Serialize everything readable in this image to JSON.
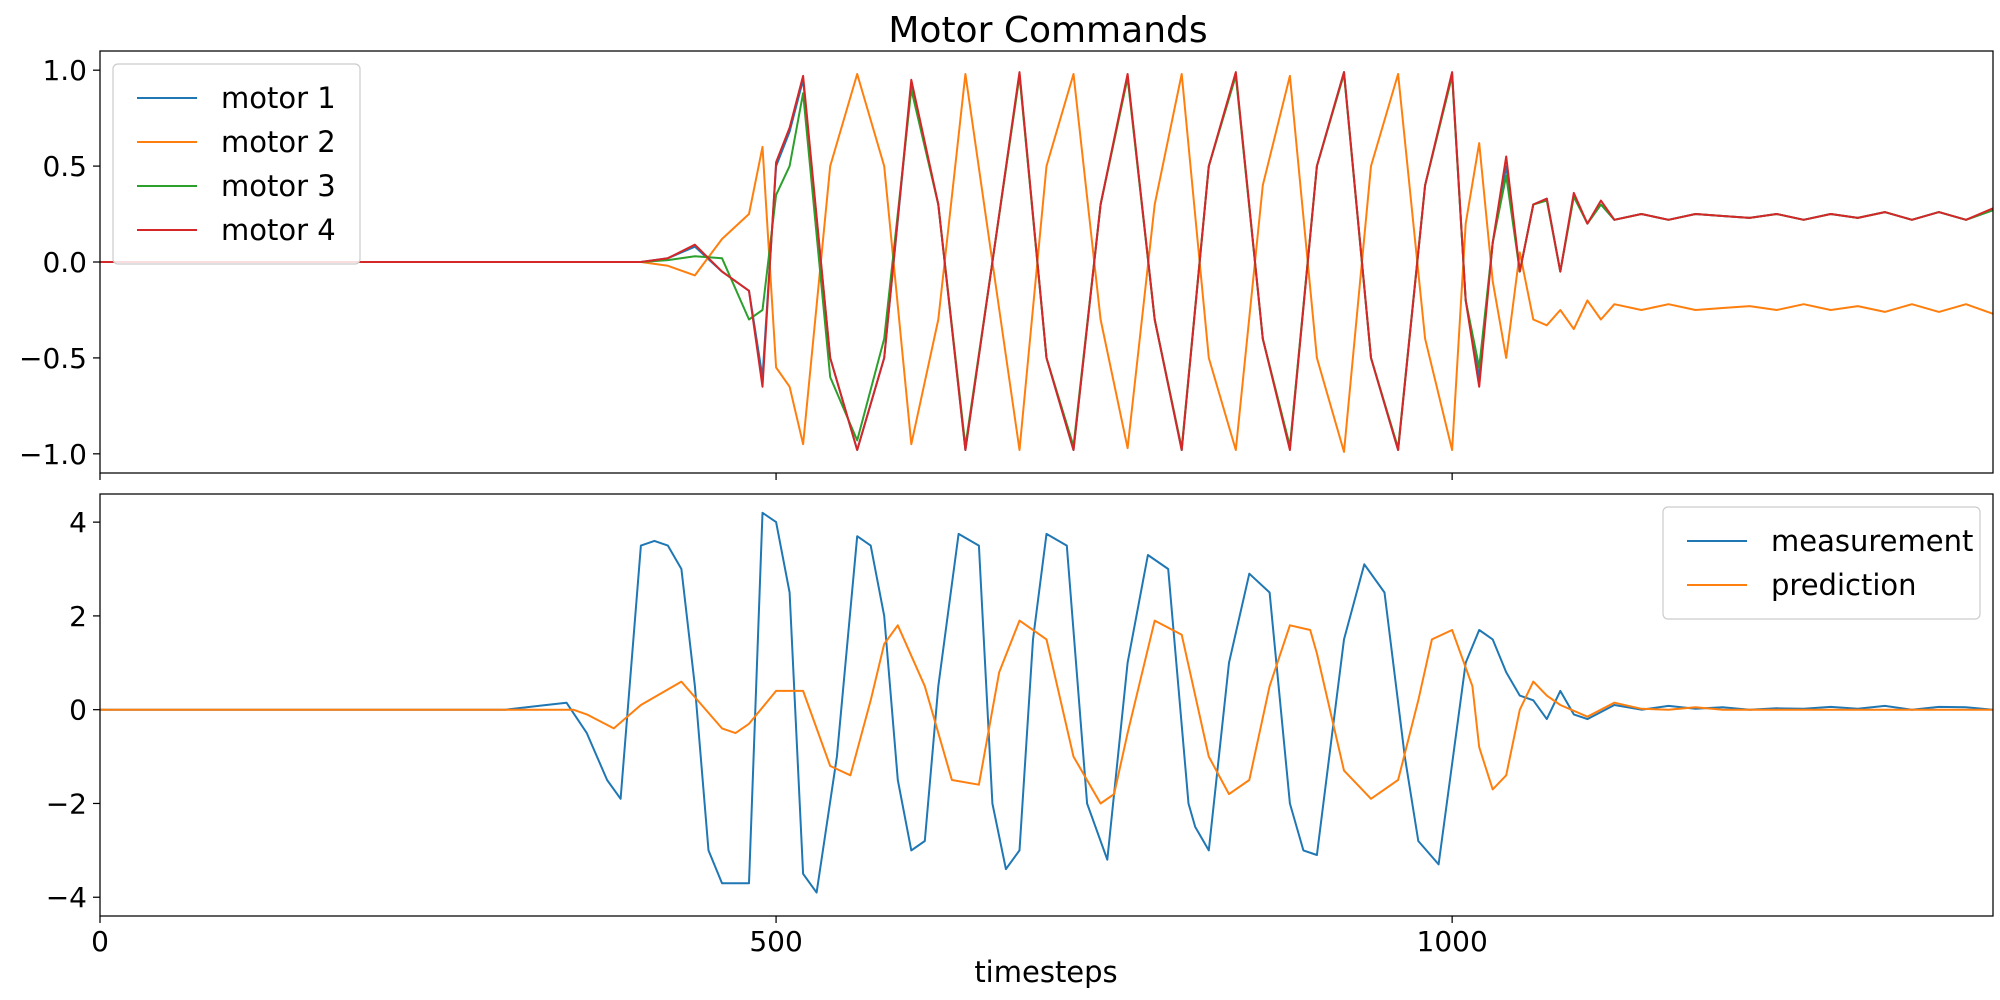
{
  "chart_data": [
    {
      "type": "line",
      "title": "Motor Commands",
      "xlabel": "",
      "ylabel": "",
      "xlim": [
        0,
        1400
      ],
      "ylim": [
        -1.1,
        1.1
      ],
      "grid": false,
      "legend": "upper-left",
      "yticks": [
        {
          "value": 1.0,
          "label": "1.0"
        },
        {
          "value": 0.5,
          "label": "0.5"
        },
        {
          "value": 0.0,
          "label": "0.0"
        },
        {
          "value": -0.5,
          "label": "−0.5"
        },
        {
          "value": -1.0,
          "label": "−1.0"
        }
      ],
      "xticks": [
        {
          "value": 0,
          "label": ""
        },
        {
          "value": 500,
          "label": ""
        },
        {
          "value": 1000,
          "label": ""
        }
      ],
      "series": [
        {
          "name": "motor 1",
          "color": "#1f77b4",
          "x": [
            0,
            400,
            420,
            440,
            460,
            480,
            490,
            500,
            510,
            520,
            540,
            560,
            580,
            600,
            620,
            640,
            660,
            680,
            700,
            720,
            740,
            760,
            780,
            800,
            820,
            840,
            860,
            880,
            900,
            920,
            940,
            960,
            980,
            1000,
            1010,
            1020,
            1030,
            1040,
            1050,
            1060,
            1070,
            1080,
            1090,
            1100,
            1110,
            1120,
            1140,
            1160,
            1180,
            1200,
            1220,
            1240,
            1260,
            1280,
            1300,
            1320,
            1340,
            1360,
            1380,
            1400
          ],
          "values": [
            0.0,
            0.0,
            0.02,
            0.08,
            -0.05,
            -0.15,
            -0.6,
            0.5,
            0.68,
            0.95,
            -0.5,
            -0.98,
            -0.5,
            0.93,
            0.3,
            -0.98,
            0.0,
            0.98,
            -0.5,
            -0.98,
            0.3,
            0.97,
            -0.3,
            -0.98,
            0.5,
            0.98,
            -0.4,
            -0.97,
            0.5,
            0.99,
            -0.5,
            -0.98,
            0.4,
            0.98,
            -0.2,
            -0.6,
            0.1,
            0.5,
            -0.05,
            0.3,
            0.33,
            -0.05,
            0.35,
            0.2,
            0.3,
            0.22,
            0.25,
            0.22,
            0.25,
            0.24,
            0.23,
            0.25,
            0.22,
            0.25,
            0.23,
            0.26,
            0.22,
            0.26,
            0.22,
            0.27
          ]
        },
        {
          "name": "motor 2",
          "color": "#ff7f0e",
          "x": [
            0,
            400,
            420,
            440,
            460,
            480,
            490,
            500,
            510,
            520,
            540,
            560,
            580,
            600,
            620,
            640,
            660,
            680,
            700,
            720,
            740,
            760,
            780,
            800,
            820,
            840,
            860,
            880,
            900,
            920,
            940,
            960,
            980,
            1000,
            1010,
            1020,
            1030,
            1040,
            1050,
            1060,
            1070,
            1080,
            1090,
            1100,
            1110,
            1120,
            1140,
            1160,
            1180,
            1200,
            1220,
            1240,
            1260,
            1280,
            1300,
            1320,
            1340,
            1360,
            1380,
            1400
          ],
          "values": [
            0.0,
            0.0,
            -0.02,
            -0.07,
            0.12,
            0.25,
            0.6,
            -0.55,
            -0.65,
            -0.95,
            0.5,
            0.98,
            0.5,
            -0.95,
            -0.3,
            0.98,
            0.0,
            -0.98,
            0.5,
            0.98,
            -0.3,
            -0.97,
            0.3,
            0.98,
            -0.5,
            -0.98,
            0.4,
            0.97,
            -0.5,
            -0.99,
            0.5,
            0.98,
            -0.4,
            -0.98,
            0.2,
            0.62,
            -0.1,
            -0.5,
            0.05,
            -0.3,
            -0.33,
            -0.25,
            -0.35,
            -0.2,
            -0.3,
            -0.22,
            -0.25,
            -0.22,
            -0.25,
            -0.24,
            -0.23,
            -0.25,
            -0.22,
            -0.25,
            -0.23,
            -0.26,
            -0.22,
            -0.26,
            -0.22,
            -0.27
          ]
        },
        {
          "name": "motor 3",
          "color": "#2ca02c",
          "x": [
            0,
            400,
            420,
            440,
            460,
            480,
            490,
            500,
            510,
            520,
            540,
            560,
            580,
            600,
            620,
            640,
            660,
            680,
            700,
            720,
            740,
            760,
            780,
            800,
            820,
            840,
            860,
            880,
            900,
            920,
            940,
            960,
            980,
            1000,
            1010,
            1020,
            1030,
            1040,
            1050,
            1060,
            1070,
            1080,
            1090,
            1100,
            1110,
            1120,
            1140,
            1160,
            1180,
            1200,
            1220,
            1240,
            1260,
            1280,
            1300,
            1320,
            1340,
            1360,
            1380,
            1400
          ],
          "values": [
            0.0,
            0.0,
            0.01,
            0.03,
            0.02,
            -0.3,
            -0.25,
            0.35,
            0.5,
            0.88,
            -0.6,
            -0.93,
            -0.4,
            0.9,
            0.3,
            -0.96,
            0.0,
            0.97,
            -0.5,
            -0.96,
            0.3,
            0.96,
            -0.3,
            -0.97,
            0.5,
            0.97,
            -0.4,
            -0.96,
            0.5,
            0.98,
            -0.5,
            -0.97,
            0.4,
            0.97,
            -0.2,
            -0.55,
            0.1,
            0.45,
            -0.05,
            0.3,
            0.32,
            -0.05,
            0.34,
            0.2,
            0.3,
            0.22,
            0.25,
            0.22,
            0.25,
            0.24,
            0.23,
            0.25,
            0.22,
            0.25,
            0.23,
            0.26,
            0.22,
            0.26,
            0.22,
            0.27
          ]
        },
        {
          "name": "motor 4",
          "color": "#d62728",
          "x": [
            0,
            400,
            420,
            440,
            460,
            480,
            490,
            500,
            510,
            520,
            540,
            560,
            580,
            600,
            620,
            640,
            660,
            680,
            700,
            720,
            740,
            760,
            780,
            800,
            820,
            840,
            860,
            880,
            900,
            920,
            940,
            960,
            980,
            1000,
            1010,
            1020,
            1030,
            1040,
            1050,
            1060,
            1070,
            1080,
            1090,
            1100,
            1110,
            1120,
            1140,
            1160,
            1180,
            1200,
            1220,
            1240,
            1260,
            1280,
            1300,
            1320,
            1340,
            1360,
            1380,
            1400
          ],
          "values": [
            0.0,
            0.0,
            0.02,
            0.09,
            -0.05,
            -0.15,
            -0.65,
            0.52,
            0.7,
            0.97,
            -0.5,
            -0.98,
            -0.5,
            0.95,
            0.3,
            -0.98,
            0.0,
            0.99,
            -0.5,
            -0.98,
            0.3,
            0.98,
            -0.3,
            -0.98,
            0.5,
            0.99,
            -0.4,
            -0.98,
            0.5,
            0.99,
            -0.5,
            -0.98,
            0.4,
            0.99,
            -0.2,
            -0.65,
            0.1,
            0.55,
            -0.05,
            0.3,
            0.33,
            -0.05,
            0.36,
            0.2,
            0.32,
            0.22,
            0.25,
            0.22,
            0.25,
            0.24,
            0.23,
            0.25,
            0.22,
            0.25,
            0.23,
            0.26,
            0.22,
            0.26,
            0.22,
            0.28
          ]
        }
      ]
    },
    {
      "type": "line",
      "title": "",
      "xlabel": "timesteps",
      "ylabel": "",
      "xlim": [
        0,
        1400
      ],
      "ylim": [
        -4.4,
        4.6
      ],
      "grid": false,
      "legend": "upper-right",
      "yticks": [
        {
          "value": 4,
          "label": "4"
        },
        {
          "value": 2,
          "label": "2"
        },
        {
          "value": 0,
          "label": "0"
        },
        {
          "value": -2,
          "label": "−2"
        },
        {
          "value": -4,
          "label": "−4"
        }
      ],
      "xticks": [
        {
          "value": 0,
          "label": "0"
        },
        {
          "value": 500,
          "label": "500"
        },
        {
          "value": 1000,
          "label": "1000"
        }
      ],
      "series": [
        {
          "name": "measurement",
          "color": "#1f77b4",
          "x": [
            0,
            300,
            330,
            345,
            360,
            375,
            385,
            400,
            410,
            420,
            430,
            440,
            450,
            460,
            470,
            480,
            490,
            500,
            510,
            520,
            530,
            545,
            560,
            570,
            580,
            590,
            600,
            610,
            620,
            635,
            650,
            660,
            670,
            680,
            690,
            700,
            715,
            730,
            745,
            760,
            775,
            790,
            805,
            810,
            820,
            835,
            850,
            865,
            880,
            890,
            900,
            920,
            935,
            950,
            965,
            975,
            990,
            1010,
            1020,
            1030,
            1040,
            1050,
            1060,
            1070,
            1080,
            1090,
            1100,
            1120,
            1140,
            1160,
            1180,
            1200,
            1220,
            1240,
            1260,
            1280,
            1300,
            1320,
            1340,
            1360,
            1380,
            1400
          ],
          "values": [
            0.0,
            0.0,
            0.1,
            0.15,
            -0.5,
            -1.5,
            -1.9,
            3.5,
            3.6,
            3.5,
            3.0,
            0.5,
            -3.0,
            -3.7,
            -3.7,
            -3.7,
            4.2,
            4.0,
            2.5,
            -3.5,
            -3.9,
            -1.0,
            3.7,
            3.5,
            2.0,
            -1.5,
            -3.0,
            -2.8,
            0.5,
            3.75,
            3.5,
            -2.0,
            -3.4,
            -3.0,
            1.5,
            3.75,
            3.5,
            -2.0,
            -3.2,
            1.0,
            3.3,
            3.0,
            -2.0,
            -2.5,
            -3.0,
            1.0,
            2.9,
            2.5,
            -2.0,
            -3.0,
            -3.1,
            1.5,
            3.1,
            2.5,
            -1.0,
            -2.8,
            -3.3,
            1.0,
            1.7,
            1.5,
            0.8,
            0.3,
            0.2,
            -0.2,
            0.4,
            -0.1,
            -0.2,
            0.1,
            0.0,
            0.08,
            0.02,
            0.05,
            0.0,
            0.03,
            0.02,
            0.06,
            0.02,
            0.08,
            0.0,
            0.06,
            0.05,
            0.0
          ]
        },
        {
          "name": "prediction",
          "color": "#ff7f0e",
          "x": [
            0,
            350,
            360,
            380,
            400,
            430,
            460,
            470,
            480,
            500,
            520,
            540,
            555,
            570,
            580,
            590,
            610,
            630,
            650,
            665,
            680,
            700,
            720,
            740,
            750,
            760,
            780,
            800,
            820,
            835,
            850,
            865,
            880,
            895,
            900,
            920,
            940,
            960,
            975,
            985,
            1000,
            1015,
            1020,
            1030,
            1040,
            1050,
            1060,
            1070,
            1080,
            1100,
            1120,
            1140,
            1160,
            1180,
            1200,
            1400
          ],
          "values": [
            0.0,
            0.0,
            -0.1,
            -0.4,
            0.1,
            0.6,
            -0.4,
            -0.5,
            -0.3,
            0.4,
            0.4,
            -1.2,
            -1.4,
            0.2,
            1.4,
            1.8,
            0.5,
            -1.5,
            -1.6,
            0.8,
            1.9,
            1.5,
            -1.0,
            -2.0,
            -1.8,
            -0.5,
            1.9,
            1.6,
            -1.0,
            -1.8,
            -1.5,
            0.5,
            1.8,
            1.7,
            1.2,
            -1.3,
            -1.9,
            -1.5,
            0.2,
            1.5,
            1.7,
            0.5,
            -0.8,
            -1.7,
            -1.4,
            0.0,
            0.6,
            0.3,
            0.1,
            -0.15,
            0.15,
            0.02,
            0.0,
            0.05,
            0.0,
            0.0
          ]
        }
      ]
    }
  ]
}
